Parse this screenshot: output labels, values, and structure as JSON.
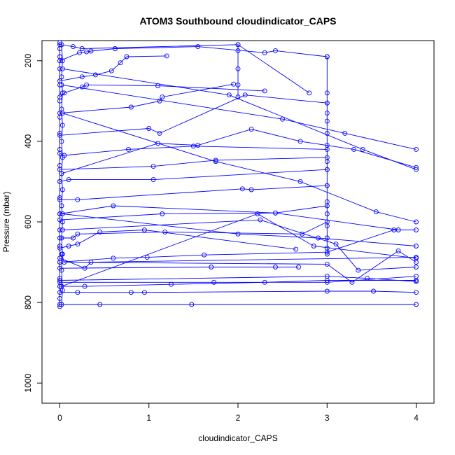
{
  "chart_data": {
    "type": "line",
    "title": "ATOM3 Southbound cloudindicator_CAPS",
    "xlabel": "cloudindicator_CAPS",
    "ylabel": "Pressure (mbar)",
    "xlim": [
      -0.2,
      4.2
    ],
    "ylim": [
      1050,
      150
    ],
    "y_reversed": true,
    "x_ticks": [
      0,
      1,
      2,
      3,
      4
    ],
    "y_ticks": [
      200,
      400,
      600,
      800,
      1000
    ],
    "grid": false,
    "color": "#0000ff",
    "markers": "open-circle",
    "series": [
      {
        "points": [
          [
            0,
            810
          ],
          [
            0,
            790
          ],
          [
            0,
            760
          ],
          [
            0,
            740
          ],
          [
            0,
            700
          ],
          [
            0,
            660
          ],
          [
            0,
            620
          ],
          [
            0,
            580
          ],
          [
            0,
            540
          ],
          [
            0,
            500
          ],
          [
            0,
            460
          ],
          [
            0,
            420
          ],
          [
            0,
            380
          ],
          [
            0,
            340
          ],
          [
            0,
            300
          ],
          [
            0,
            260
          ],
          [
            0,
            220
          ],
          [
            0,
            190
          ],
          [
            0,
            170
          ],
          [
            0,
            155
          ]
        ]
      },
      {
        "points": [
          [
            0.02,
            805
          ],
          [
            0.03,
            770
          ],
          [
            0.02,
            720
          ],
          [
            0.03,
            680
          ],
          [
            0.02,
            640
          ],
          [
            0.03,
            600
          ],
          [
            0.02,
            560
          ],
          [
            0.03,
            520
          ],
          [
            0.02,
            480
          ],
          [
            0.03,
            440
          ],
          [
            0.02,
            400
          ],
          [
            0.03,
            360
          ],
          [
            0.02,
            320
          ],
          [
            0.03,
            280
          ],
          [
            0.02,
            240
          ],
          [
            0.03,
            200
          ],
          [
            0.02,
            160
          ]
        ]
      },
      {
        "points": [
          [
            3,
            190
          ],
          [
            3,
            280
          ],
          [
            3,
            305
          ],
          [
            3,
            330
          ],
          [
            3,
            350
          ],
          [
            3,
            380
          ],
          [
            3,
            410
          ],
          [
            3,
            450
          ],
          [
            3,
            470
          ],
          [
            3,
            510
          ],
          [
            3,
            550
          ],
          [
            3,
            580
          ],
          [
            3,
            610
          ],
          [
            3,
            640
          ],
          [
            3,
            665
          ],
          [
            3,
            680
          ]
        ]
      },
      {
        "points": [
          [
            2,
            160
          ],
          [
            2,
            175
          ],
          [
            2,
            220
          ],
          [
            2,
            260
          ],
          [
            2,
            290
          ]
        ]
      },
      {
        "points": [
          [
            0,
            805
          ],
          [
            0.45,
            805
          ],
          [
            1.48,
            805
          ],
          [
            4,
            805
          ]
        ]
      },
      {
        "points": [
          [
            0,
            775
          ],
          [
            0.2,
            775
          ],
          [
            0.8,
            775
          ],
          [
            0.95,
            775
          ],
          [
            3,
            772
          ],
          [
            3.52,
            772
          ],
          [
            4,
            775
          ]
        ]
      },
      {
        "points": [
          [
            0,
            760
          ],
          [
            0.28,
            760
          ],
          [
            1.25,
            755
          ],
          [
            2.3,
            750
          ],
          [
            3,
            745
          ],
          [
            4,
            745
          ]
        ]
      },
      {
        "points": [
          [
            0,
            750
          ],
          [
            1.73,
            750
          ],
          [
            3,
            750
          ],
          [
            4,
            735
          ]
        ]
      },
      {
        "points": [
          [
            0,
            745
          ],
          [
            3,
            735
          ],
          [
            3.45,
            740
          ],
          [
            4,
            748
          ]
        ]
      },
      {
        "points": [
          [
            0,
            715
          ],
          [
            1.7,
            712
          ],
          [
            2.42,
            712
          ],
          [
            2.68,
            712
          ]
        ]
      },
      {
        "points": [
          [
            0,
            700
          ],
          [
            0.6,
            690
          ],
          [
            0.98,
            688
          ],
          [
            1.62,
            682
          ],
          [
            3,
            675
          ],
          [
            3.75,
            620
          ],
          [
            4,
            620
          ]
        ]
      },
      {
        "points": [
          [
            0,
            690
          ],
          [
            0.28,
            715
          ],
          [
            0.35,
            700
          ],
          [
            4,
            688
          ]
        ]
      },
      {
        "points": [
          [
            0,
            665
          ],
          [
            0.1,
            660
          ],
          [
            0.2,
            655
          ],
          [
            0.45,
            625
          ],
          [
            0.95,
            620
          ],
          [
            2.65,
            668
          ]
        ]
      },
      {
        "points": [
          [
            0,
            640
          ],
          [
            0.15,
            640
          ],
          [
            0.2,
            630
          ],
          [
            1.18,
            625
          ],
          [
            2.72,
            630
          ],
          [
            3,
            600
          ]
        ]
      },
      {
        "points": [
          [
            0,
            595
          ],
          [
            1.15,
            580
          ],
          [
            2.42,
            578
          ],
          [
            3,
            560
          ]
        ]
      },
      {
        "points": [
          [
            0,
            580
          ],
          [
            0.6,
            560
          ],
          [
            2.42,
            578
          ],
          [
            3.8,
            620
          ]
        ]
      },
      {
        "points": [
          [
            0,
            545
          ],
          [
            0.2,
            545
          ],
          [
            2.05,
            518
          ],
          [
            2.15,
            520
          ],
          [
            3,
            510
          ]
        ]
      },
      {
        "points": [
          [
            0,
            500
          ],
          [
            0.1,
            495
          ],
          [
            1.05,
            495
          ],
          [
            3,
            470
          ]
        ]
      },
      {
        "points": [
          [
            0,
            470
          ],
          [
            1.05,
            462
          ],
          [
            1.75,
            447
          ],
          [
            3,
            440
          ]
        ]
      },
      {
        "points": [
          [
            0,
            430
          ],
          [
            0.05,
            435
          ],
          [
            0.77,
            420
          ],
          [
            1.5,
            412
          ],
          [
            3,
            420
          ]
        ]
      },
      {
        "points": [
          [
            0,
            385
          ],
          [
            1.0,
            368
          ],
          [
            1.12,
            380
          ],
          [
            2.08,
            285
          ],
          [
            3,
            305
          ]
        ]
      },
      {
        "points": [
          [
            0,
            330
          ],
          [
            0.8,
            315
          ],
          [
            1.12,
            300
          ],
          [
            1.15,
            290
          ],
          [
            1.95,
            258
          ]
        ]
      },
      {
        "points": [
          [
            0,
            290
          ],
          [
            0.05,
            280
          ],
          [
            0.25,
            265
          ],
          [
            0.3,
            260
          ],
          [
            1.1,
            262
          ],
          [
            2.3,
            275
          ]
        ]
      },
      {
        "points": [
          [
            0,
            250
          ],
          [
            0.25,
            240
          ],
          [
            0.4,
            235
          ],
          [
            0.58,
            225
          ],
          [
            0.68,
            205
          ],
          [
            0.75,
            190
          ],
          [
            1.2,
            188
          ]
        ]
      },
      {
        "points": [
          [
            0,
            200
          ],
          [
            0.22,
            180
          ],
          [
            0.3,
            178
          ],
          [
            0.35,
            176
          ],
          [
            0.62,
            170
          ],
          [
            1.55,
            165
          ],
          [
            2.3,
            180
          ],
          [
            2.42,
            175
          ],
          [
            3,
            190
          ]
        ]
      },
      {
        "points": [
          [
            0,
            160
          ],
          [
            0.15,
            165
          ],
          [
            0.25,
            170
          ],
          [
            2,
            160
          ],
          [
            2.8,
            280
          ]
        ]
      },
      {
        "points": [
          [
            0.02,
            760
          ],
          [
            2.22,
            580
          ],
          [
            2.85,
            660
          ],
          [
            4,
            690
          ]
        ]
      },
      {
        "points": [
          [
            0.03,
            580
          ],
          [
            2.0,
            630
          ],
          [
            2.9,
            640
          ],
          [
            4,
            660
          ]
        ]
      },
      {
        "points": [
          [
            0.02,
            480
          ],
          [
            1.1,
            405
          ],
          [
            1.55,
            410
          ],
          [
            2.15,
            370
          ],
          [
            2.7,
            400
          ],
          [
            3.3,
            420
          ],
          [
            4,
            465
          ]
        ]
      },
      {
        "points": [
          [
            0.03,
            330
          ],
          [
            1.75,
            450
          ],
          [
            2.7,
            500
          ],
          [
            3.55,
            575
          ],
          [
            4,
            600
          ]
        ]
      },
      {
        "points": [
          [
            0.02,
            260
          ],
          [
            2.5,
            345
          ],
          [
            3.2,
            380
          ],
          [
            4,
            420
          ]
        ]
      },
      {
        "points": [
          [
            0.03,
            220
          ],
          [
            1.9,
            285
          ],
          [
            3.4,
            420
          ],
          [
            4,
            470
          ]
        ]
      },
      {
        "points": [
          [
            0.02,
            680
          ],
          [
            0.05,
            700
          ],
          [
            3.0,
            705
          ],
          [
            3.28,
            750
          ],
          [
            3.8,
            672
          ],
          [
            4,
            700
          ]
        ]
      },
      {
        "points": [
          [
            0.03,
            620
          ],
          [
            2.25,
            595
          ],
          [
            3.1,
            655
          ],
          [
            3.35,
            720
          ],
          [
            4,
            712
          ]
        ]
      }
    ]
  }
}
